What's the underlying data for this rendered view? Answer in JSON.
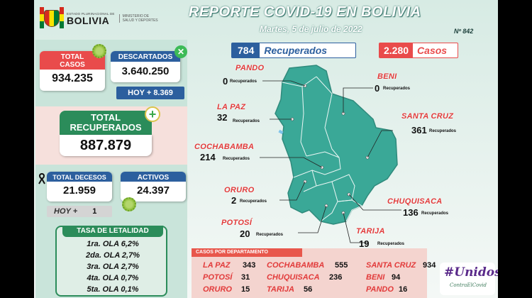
{
  "header": {
    "estado": "ESTADO PLURINACIONAL DE",
    "country": "BOLIVIA",
    "ministerio": [
      "MINISTERIO DE",
      "SALUD Y DEPORTES"
    ],
    "title": "REPORTE COVID-19 EN BOLIVIA",
    "date": "Martes, 5 de julio de 2022",
    "report_no": "Nº 842"
  },
  "colors": {
    "red": "#e94b4b",
    "blue": "#2c5f9e",
    "green": "#2b8c5a",
    "map": "#3aa897",
    "accent_name": "#e23b3b"
  },
  "summary": {
    "total_casos_label": [
      "TOTAL",
      "CASOS"
    ],
    "total_casos": "934.235",
    "descartados_label": "DESCARTADOS",
    "descartados": "3.640.250",
    "descartados_hoy": "HOY + 8.369",
    "recuperados_label": [
      "TOTAL",
      "RECUPERADOS"
    ],
    "recuperados": "887.879",
    "decesos_label": "TOTAL DECESOS",
    "decesos": "21.959",
    "decesos_hoy_label": "HOY +",
    "decesos_hoy": "1",
    "activos_label": "ACTIVOS",
    "activos": "24.397"
  },
  "tasa": {
    "title": "TASA DE LETALIDAD",
    "rows": [
      "1ra. OLA 6,2%",
      "2da. OLA 2,7%",
      "3ra. OLA 2,7%",
      "4ta. OLA 0,7%",
      "5ta. OLA 0,1%"
    ]
  },
  "legend": {
    "recuperados_value": "784",
    "recuperados_label": "Recuperados",
    "casos_value": "2.280",
    "casos_label": "Casos"
  },
  "sub_label": "Recuperados",
  "departments": [
    {
      "name": "PANDO",
      "recuperados": "0"
    },
    {
      "name": "BENI",
      "recuperados": "0"
    },
    {
      "name": "LA PAZ",
      "recuperados": "32"
    },
    {
      "name": "SANTA CRUZ",
      "recuperados": "361"
    },
    {
      "name": "COCHABAMBA",
      "recuperados": "214"
    },
    {
      "name": "ORURO",
      "recuperados": "2"
    },
    {
      "name": "CHUQUISACA",
      "recuperados": "136"
    },
    {
      "name": "POTOSÍ",
      "recuperados": "20"
    },
    {
      "name": "TARIJA",
      "recuperados": "19"
    }
  ],
  "casos_por_departamento": {
    "title": "CASOS POR DEPARTAMENTO",
    "rows": [
      {
        "name": "LA PAZ",
        "value": "343"
      },
      {
        "name": "COCHABAMBA",
        "value": "555"
      },
      {
        "name": "SANTA CRUZ",
        "value": "934"
      },
      {
        "name": "POTOSÍ",
        "value": "31"
      },
      {
        "name": "CHUQUISACA",
        "value": "236"
      },
      {
        "name": "BENI",
        "value": "94"
      },
      {
        "name": "ORURO",
        "value": "15"
      },
      {
        "name": "TARIJA",
        "value": "56"
      },
      {
        "name": "PANDO",
        "value": "16"
      }
    ]
  },
  "campaign": {
    "line1": "#Unidos",
    "line2": "ContraElCovid"
  }
}
